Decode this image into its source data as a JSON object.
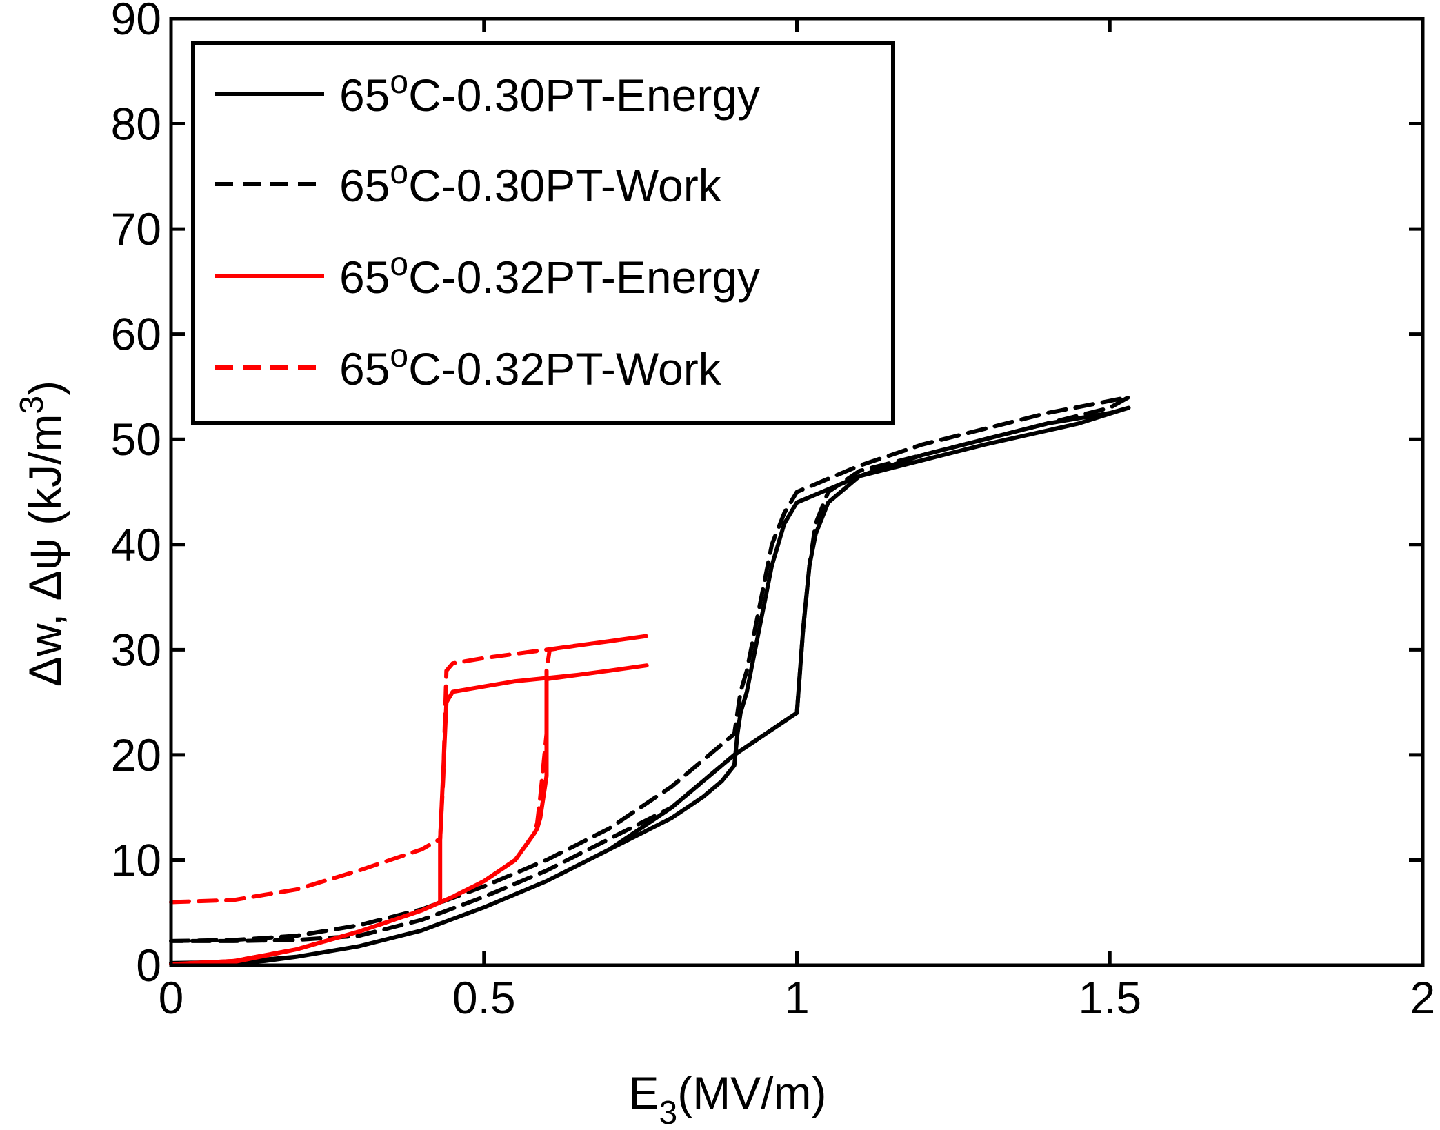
{
  "chart_data": {
    "type": "line",
    "title": "",
    "xlabel": "E3(MV/m)",
    "xlabel_main": "E",
    "xlabel_sub": "3",
    "xlabel_rest": "(MV/m)",
    "ylabel": "Δw, Δψ (kJ/m3)",
    "ylabel_main": "Δw, Δψ (kJ/m",
    "ylabel_sup": "3",
    "ylabel_end": ")",
    "xlim": [
      0,
      2
    ],
    "ylim": [
      0,
      90
    ],
    "x_ticks": [
      0,
      0.5,
      1,
      1.5,
      2
    ],
    "x_tick_labels": [
      "0",
      "0.5",
      "1",
      "1.5",
      "2"
    ],
    "y_ticks": [
      0,
      10,
      20,
      30,
      40,
      50,
      60,
      70,
      80,
      90
    ],
    "y_tick_labels": [
      "0",
      "10",
      "20",
      "30",
      "40",
      "50",
      "60",
      "70",
      "80",
      "90"
    ],
    "grid": false,
    "legend_position": "top-left",
    "series": [
      {
        "name": "65oC-0.30PT-Energy",
        "label_main": "65",
        "label_sup": "o",
        "label_rest": "C-0.30PT-Energy",
        "color": "#000000",
        "dash": "solid",
        "x": [
          0.0,
          0.1,
          0.2,
          0.3,
          0.4,
          0.5,
          0.6,
          0.7,
          0.8,
          0.85,
          0.9,
          0.95,
          1.0,
          1.01,
          1.02,
          1.03,
          1.05,
          1.1,
          1.2,
          1.3,
          1.4,
          1.5,
          1.53,
          1.45,
          1.3,
          1.2,
          1.1,
          1.0,
          0.98,
          0.96,
          0.94,
          0.92,
          0.91,
          0.905,
          0.9,
          0.88,
          0.85,
          0.8,
          0.7,
          0.6,
          0.5,
          0.4,
          0.3,
          0.2,
          0.15,
          0.1,
          0.0
        ],
        "y": [
          0.2,
          0.3,
          0.8,
          1.8,
          3.3,
          5.5,
          8.0,
          11.0,
          15.0,
          17.5,
          20.0,
          22.0,
          24.0,
          32.0,
          38.0,
          41.0,
          44.0,
          46.5,
          48.5,
          50.0,
          51.5,
          52.5,
          53.0,
          51.5,
          49.5,
          48.0,
          46.5,
          44.0,
          42.0,
          38.0,
          32.0,
          26.0,
          24.0,
          22.0,
          19.0,
          17.5,
          16.0,
          14.0,
          11.0,
          8.0,
          5.5,
          3.3,
          1.8,
          0.8,
          0.4,
          0.2,
          0.2
        ]
      },
      {
        "name": "65oC-0.30PT-Work",
        "label_main": "65",
        "label_sup": "o",
        "label_rest": "C-0.30PT-Work",
        "color": "#000000",
        "dash": "dashed",
        "x": [
          0.0,
          0.1,
          0.2,
          0.3,
          0.4,
          0.5,
          0.6,
          0.7,
          0.8,
          0.85,
          0.9,
          0.905,
          0.91,
          0.92,
          0.94,
          0.96,
          0.98,
          1.0,
          1.1,
          1.2,
          1.3,
          1.4,
          1.53,
          1.5,
          1.4,
          1.3,
          1.2,
          1.1,
          1.05,
          1.03,
          1.02,
          1.01,
          1.0,
          0.95,
          0.9,
          0.85,
          0.8,
          0.7,
          0.6,
          0.5,
          0.4,
          0.3,
          0.2,
          0.1,
          0.0
        ],
        "y": [
          2.3,
          2.4,
          2.8,
          3.8,
          5.3,
          7.5,
          10.0,
          13.0,
          17.0,
          19.5,
          22.0,
          24.0,
          26.0,
          28.0,
          34.0,
          40.0,
          43.0,
          45.0,
          47.5,
          49.5,
          51.0,
          52.5,
          54.0,
          53.0,
          51.5,
          50.0,
          48.5,
          47.0,
          45.0,
          42.0,
          38.0,
          32.0,
          24.0,
          22.0,
          20.0,
          17.5,
          15.0,
          12.0,
          9.0,
          6.5,
          4.3,
          2.8,
          2.4,
          2.3,
          2.3
        ]
      },
      {
        "name": "65oC-0.32PT-Energy",
        "label_main": "65",
        "label_sup": "o",
        "label_rest": "C-0.32PT-Energy",
        "color": "#ff0000",
        "dash": "solid",
        "x": [
          0.0,
          0.1,
          0.2,
          0.3,
          0.4,
          0.43,
          0.43,
          0.44,
          0.45,
          0.5,
          0.55,
          0.6,
          0.65,
          0.7,
          0.76,
          0.7,
          0.65,
          0.6,
          0.6,
          0.6,
          0.59,
          0.585,
          0.58,
          0.55,
          0.5,
          0.45,
          0.4,
          0.3,
          0.2,
          0.1,
          0.0
        ],
        "y": [
          0.1,
          0.3,
          1.5,
          3.2,
          5.2,
          6.0,
          12.0,
          25.0,
          26.0,
          26.5,
          27.0,
          27.3,
          27.6,
          28.0,
          28.5,
          28.0,
          27.6,
          27.2,
          24.0,
          18.0,
          14.0,
          13.0,
          12.5,
          10.0,
          8.0,
          6.5,
          5.2,
          3.2,
          1.5,
          0.4,
          0.1
        ]
      },
      {
        "name": "65oC-0.32PT-Work",
        "label_main": "65",
        "label_sup": "o",
        "label_rest": "C-0.32PT-Work",
        "color": "#ff0000",
        "dash": "dashed",
        "x": [
          0.0,
          0.1,
          0.2,
          0.3,
          0.4,
          0.43,
          0.435,
          0.44,
          0.45,
          0.5,
          0.55,
          0.6,
          0.65,
          0.7,
          0.76,
          0.7,
          0.65,
          0.605,
          0.6,
          0.6,
          0.59,
          0.585,
          0.58,
          0.55,
          0.5,
          0.45,
          0.4,
          0.3,
          0.2,
          0.1,
          0.0
        ],
        "y": [
          6.0,
          6.2,
          7.2,
          9.0,
          11.0,
          12.0,
          18.0,
          28.0,
          28.7,
          29.2,
          29.6,
          30.0,
          30.4,
          30.8,
          31.3,
          30.8,
          30.4,
          30.0,
          28.0,
          22.0,
          16.0,
          13.5,
          12.5,
          10.0,
          8.0,
          6.5,
          5.2,
          3.2,
          1.5,
          0.4,
          0.1
        ]
      }
    ]
  }
}
